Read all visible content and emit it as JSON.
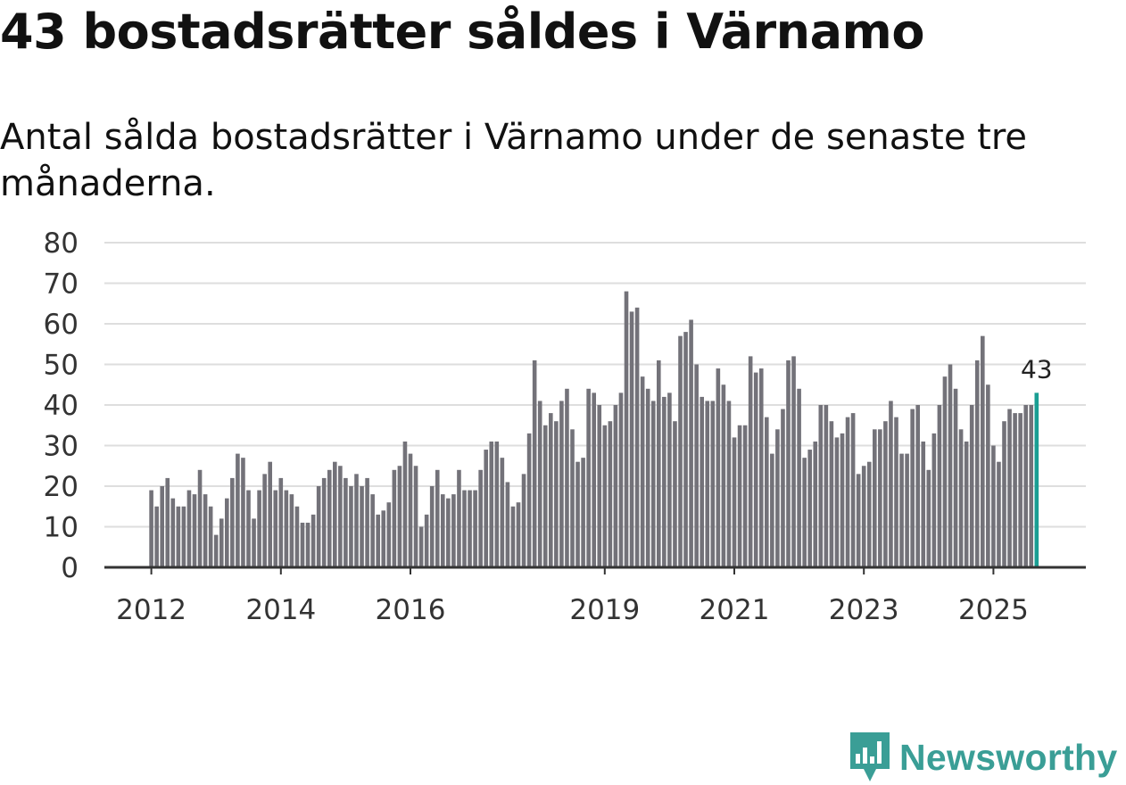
{
  "title": "43 bostadsrätter såldes i Värnamo",
  "subtitle": "Antal sålda bostadsrätter i Värnamo under de senaste tre månaderna.",
  "brand": {
    "name": "Newsworthy",
    "color": "#3a9e96",
    "icon": "newsworthy-logo-icon"
  },
  "colors": {
    "bar": "#737279",
    "highlight": "#1a9e93",
    "grid": "#dedede",
    "axis": "#333333"
  },
  "chart_data": {
    "type": "bar",
    "title": "43 bostadsrätter såldes i Värnamo",
    "subtitle": "Antal sålda bostadsrätter i Värnamo under de senaste tre månaderna.",
    "xlabel": "",
    "ylabel": "",
    "ylim": [
      0,
      80
    ],
    "yticks": [
      0,
      10,
      20,
      30,
      40,
      50,
      60,
      70,
      80
    ],
    "grid": true,
    "start": "2012-01",
    "frequency": "monthly",
    "xtick_labels": [
      {
        "label": "2012",
        "index": 0
      },
      {
        "label": "2014",
        "index": 24
      },
      {
        "label": "2016",
        "index": 48
      },
      {
        "label": "2019",
        "index": 84
      },
      {
        "label": "2021",
        "index": 108
      },
      {
        "label": "2023",
        "index": 132
      },
      {
        "label": "2025",
        "index": 156
      }
    ],
    "values": [
      19,
      15,
      20,
      22,
      17,
      15,
      15,
      19,
      18,
      24,
      18,
      15,
      8,
      12,
      17,
      22,
      28,
      27,
      19,
      12,
      19,
      23,
      26,
      19,
      22,
      19,
      18,
      15,
      11,
      11,
      13,
      20,
      22,
      24,
      26,
      25,
      22,
      20,
      23,
      20,
      22,
      18,
      13,
      14,
      16,
      24,
      25,
      31,
      28,
      25,
      10,
      13,
      20,
      24,
      18,
      17,
      18,
      24,
      19,
      19,
      19,
      24,
      29,
      31,
      31,
      27,
      21,
      15,
      16,
      23,
      33,
      51,
      41,
      35,
      38,
      36,
      41,
      44,
      34,
      26,
      27,
      44,
      43,
      40,
      35,
      36,
      40,
      43,
      68,
      63,
      64,
      47,
      44,
      41,
      51,
      42,
      43,
      36,
      57,
      58,
      61,
      50,
      42,
      41,
      41,
      49,
      45,
      41,
      32,
      35,
      35,
      52,
      48,
      49,
      37,
      28,
      34,
      39,
      51,
      52,
      44,
      27,
      29,
      31,
      40,
      40,
      36,
      32,
      33,
      37,
      38,
      23,
      25,
      26,
      34,
      34,
      36,
      41,
      37,
      28,
      28,
      39,
      40,
      31,
      24,
      33,
      40,
      47,
      50,
      44,
      34,
      31,
      40,
      51,
      57,
      45,
      30,
      26,
      36,
      39,
      38,
      38,
      40,
      40,
      43
    ],
    "highlight": {
      "index": 164,
      "label": "43"
    }
  }
}
